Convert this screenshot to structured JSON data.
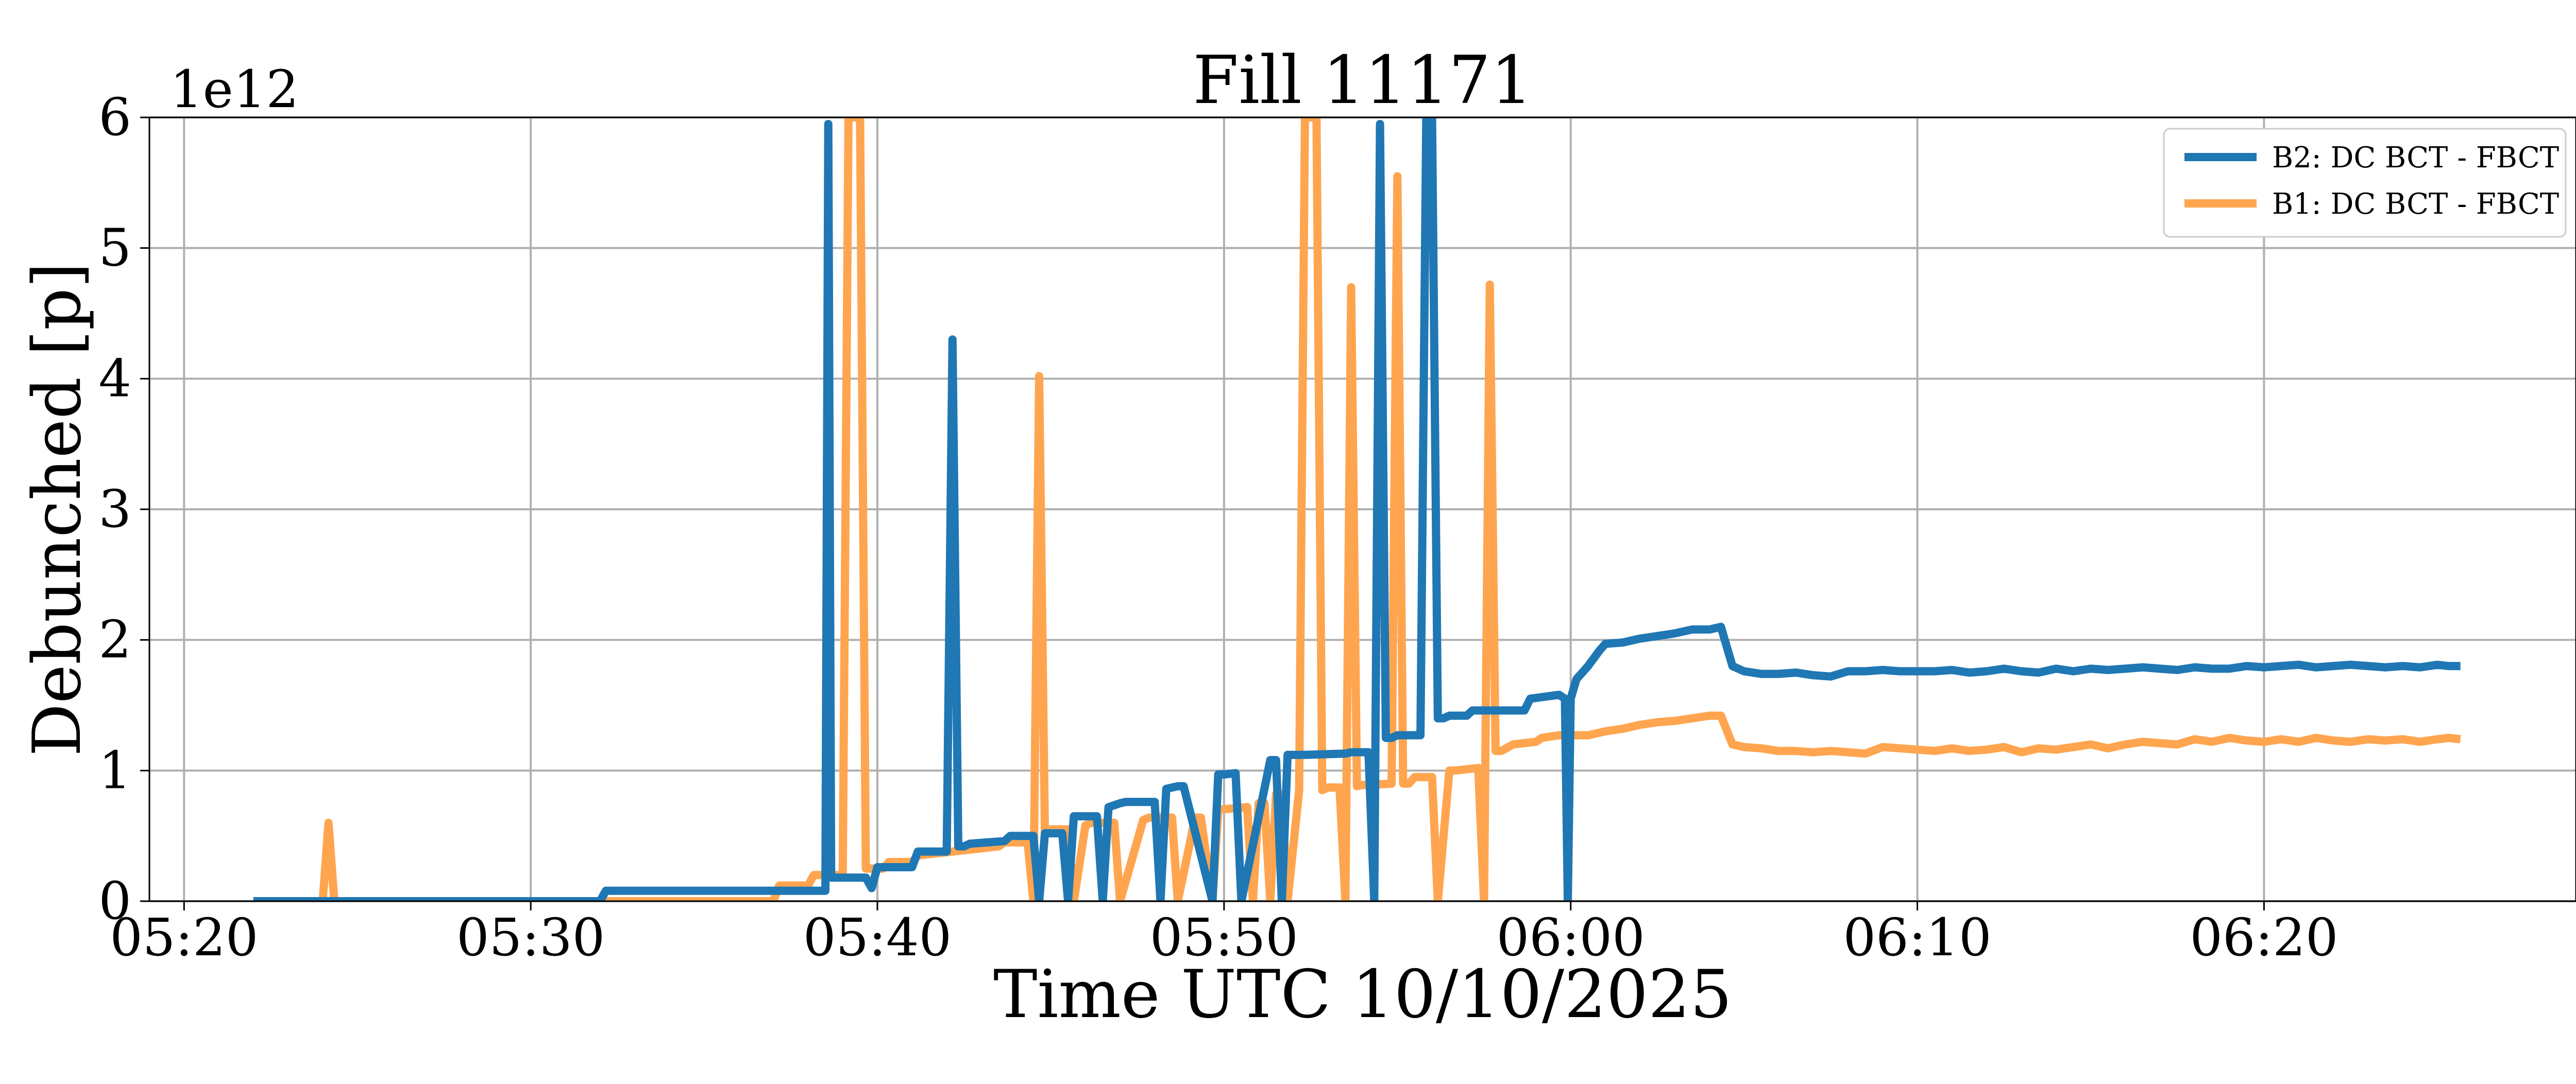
{
  "chart_data": {
    "type": "line",
    "title": "Fill 11171",
    "xlabel": "Time UTC 10/10/2025",
    "ylabel": "Debunched [p]",
    "y_offset_label": "1e12",
    "xlim": [
      "05:19",
      "06:29"
    ],
    "ylim": [
      0,
      6
    ],
    "x_ticks": [
      "05:20",
      "05:30",
      "05:40",
      "05:50",
      "06:00",
      "06:10",
      "06:20"
    ],
    "y_ticks": [
      0,
      1,
      2,
      3,
      4,
      5,
      6
    ],
    "grid": true,
    "legend_position": "top-right",
    "series": [
      {
        "name": "B2: DC BCT - FBCT",
        "color": "#1f77b4",
        "x": [
          "05:22:00",
          "05:32:00",
          "05:32:10",
          "05:38:30",
          "05:38:35",
          "05:38:40",
          "05:38:50",
          "05:39:40",
          "05:39:50",
          "05:40:00",
          "05:40:10",
          "05:41:00",
          "05:41:10",
          "05:42:00",
          "05:42:10",
          "05:42:20",
          "05:42:30",
          "05:42:40",
          "05:43:40",
          "05:43:50",
          "05:44:30",
          "05:44:40",
          "05:44:50",
          "05:45:20",
          "05:45:30",
          "05:45:40",
          "05:45:50",
          "05:46:20",
          "05:46:30",
          "05:46:40",
          "05:47:00",
          "05:47:10",
          "05:48:00",
          "05:48:10",
          "05:48:20",
          "05:48:40",
          "05:48:50",
          "05:49:40",
          "05:49:50",
          "05:50:00",
          "05:50:20",
          "05:50:30",
          "05:51:20",
          "05:51:30",
          "05:51:40",
          "05:51:50",
          "05:52:00",
          "05:52:10",
          "05:52:20",
          "05:53:30",
          "05:53:40",
          "05:54:00",
          "05:54:10",
          "05:54:20",
          "05:54:30",
          "05:54:40",
          "05:54:50",
          "05:55:00",
          "05:55:40",
          "05:55:50",
          "05:56:00",
          "05:56:10",
          "05:56:20",
          "05:56:30",
          "05:57:00",
          "05:57:10",
          "05:58:40",
          "05:58:50",
          "05:59:40",
          "05:59:50",
          "05:59:55",
          "06:00:00",
          "06:00:10",
          "06:00:30",
          "06:00:50",
          "06:01:00",
          "06:01:30",
          "06:02:00",
          "06:03:00",
          "06:03:30",
          "06:04:00",
          "06:04:20",
          "06:04:40",
          "06:05:00",
          "06:05:30",
          "06:06:00",
          "06:06:30",
          "06:07:00",
          "06:07:30",
          "06:08:00",
          "06:08:30",
          "06:09:00",
          "06:09:30",
          "06:10:00",
          "06:10:30",
          "06:11:00",
          "06:11:30",
          "06:12:00",
          "06:12:30",
          "06:13:00",
          "06:13:30",
          "06:14:00",
          "06:14:30",
          "06:15:00",
          "06:15:30",
          "06:16:00",
          "06:16:30",
          "06:17:00",
          "06:17:30",
          "06:18:00",
          "06:18:30",
          "06:19:00",
          "06:19:30",
          "06:20:00",
          "06:20:30",
          "06:21:00",
          "06:21:30",
          "06:22:00",
          "06:22:30",
          "06:23:00",
          "06:23:30",
          "06:24:00",
          "06:24:30",
          "06:25:00",
          "06:25:20",
          "06:25:40"
        ],
        "y": [
          0.0,
          0.0,
          0.08,
          0.08,
          5.95,
          0.18,
          0.18,
          0.18,
          0.1,
          0.26,
          0.26,
          0.26,
          0.38,
          0.38,
          4.3,
          0.42,
          0.42,
          0.44,
          0.46,
          0.5,
          0.5,
          0.0,
          0.52,
          0.52,
          0.0,
          0.65,
          0.65,
          0.65,
          0.0,
          0.72,
          0.75,
          0.76,
          0.76,
          0.0,
          0.86,
          0.88,
          0.88,
          0.0,
          0.97,
          0.97,
          0.98,
          0.0,
          1.08,
          1.08,
          0.0,
          1.12,
          1.12,
          1.12,
          1.12,
          1.13,
          1.14,
          1.14,
          1.14,
          0.0,
          5.95,
          1.25,
          1.25,
          1.27,
          1.27,
          6.0,
          6.0,
          1.4,
          1.4,
          1.42,
          1.42,
          1.46,
          1.46,
          1.55,
          1.58,
          1.55,
          0.0,
          1.55,
          1.7,
          1.8,
          1.92,
          1.97,
          1.98,
          2.01,
          2.05,
          2.08,
          2.08,
          2.1,
          1.8,
          1.76,
          1.74,
          1.74,
          1.75,
          1.73,
          1.72,
          1.76,
          1.76,
          1.77,
          1.76,
          1.76,
          1.76,
          1.77,
          1.75,
          1.76,
          1.78,
          1.76,
          1.75,
          1.78,
          1.76,
          1.78,
          1.77,
          1.78,
          1.79,
          1.78,
          1.77,
          1.79,
          1.78,
          1.78,
          1.8,
          1.79,
          1.8,
          1.81,
          1.79,
          1.8,
          1.81,
          1.8,
          1.79,
          1.8,
          1.79,
          1.81,
          1.8,
          1.8
        ]
      },
      {
        "name": "B1: DC BCT - FBCT",
        "color": "#ffa54f",
        "x": [
          "05:22:00",
          "05:24:00",
          "05:24:10",
          "05:24:20",
          "05:24:30",
          "05:32:00",
          "05:37:00",
          "05:37:10",
          "05:38:00",
          "05:38:10",
          "05:39:00",
          "05:39:10",
          "05:39:20",
          "05:39:30",
          "05:39:40",
          "05:39:50",
          "05:40:10",
          "05:40:20",
          "05:41:00",
          "05:41:10",
          "05:43:30",
          "05:43:40",
          "05:44:20",
          "05:44:30",
          "05:44:40",
          "05:44:50",
          "05:45:00",
          "05:45:30",
          "05:45:40",
          "05:46:00",
          "05:46:10",
          "05:46:50",
          "05:47:00",
          "05:47:40",
          "05:47:50",
          "05:48:30",
          "05:48:40",
          "05:49:10",
          "05:49:20",
          "05:49:40",
          "05:49:50",
          "05:50:40",
          "05:50:50",
          "05:51:00",
          "05:51:10",
          "05:51:20",
          "05:51:30",
          "05:51:40",
          "05:51:50",
          "05:52:10",
          "05:52:20",
          "05:52:30",
          "05:52:40",
          "05:52:50",
          "05:53:00",
          "05:53:20",
          "05:53:30",
          "05:53:40",
          "05:53:50",
          "05:54:00",
          "05:54:10",
          "05:54:50",
          "05:55:00",
          "05:55:10",
          "05:55:20",
          "05:55:30",
          "05:56:00",
          "05:56:10",
          "05:56:20",
          "05:56:30",
          "05:56:40",
          "05:57:20",
          "05:57:30",
          "05:57:40",
          "05:57:50",
          "05:58:00",
          "05:58:20",
          "05:59:00",
          "05:59:10",
          "05:59:40",
          "06:00:00",
          "06:00:30",
          "06:01:00",
          "06:01:30",
          "06:02:00",
          "06:02:30",
          "06:03:00",
          "06:03:30",
          "06:04:00",
          "06:04:20",
          "06:04:40",
          "06:05:00",
          "06:05:30",
          "06:06:00",
          "06:06:30",
          "06:07:00",
          "06:07:30",
          "06:08:00",
          "06:08:30",
          "06:09:00",
          "06:09:30",
          "06:10:00",
          "06:10:30",
          "06:11:00",
          "06:11:30",
          "06:12:00",
          "06:12:30",
          "06:13:00",
          "06:13:30",
          "06:14:00",
          "06:14:30",
          "06:15:00",
          "06:15:30",
          "06:16:00",
          "06:16:30",
          "06:17:00",
          "06:17:30",
          "06:18:00",
          "06:18:30",
          "06:19:00",
          "06:19:30",
          "06:20:00",
          "06:20:30",
          "06:21:00",
          "06:21:30",
          "06:22:00",
          "06:22:30",
          "06:23:00",
          "06:23:30",
          "06:24:00",
          "06:24:30",
          "06:25:00",
          "06:25:20",
          "06:25:40"
        ],
        "y": [
          0.0,
          0.0,
          0.6,
          0.0,
          0.0,
          0.0,
          0.0,
          0.12,
          0.12,
          0.2,
          0.2,
          6.0,
          6.0,
          6.0,
          0.25,
          0.25,
          0.25,
          0.3,
          0.3,
          0.35,
          0.42,
          0.45,
          0.45,
          0.0,
          4.02,
          0.5,
          0.55,
          0.55,
          0.0,
          0.58,
          0.6,
          0.6,
          0.0,
          0.62,
          0.64,
          0.64,
          0.0,
          0.64,
          0.64,
          0.0,
          0.7,
          0.72,
          0.0,
          0.75,
          0.75,
          0.0,
          0.82,
          0.82,
          0.0,
          0.85,
          6.0,
          6.0,
          6.0,
          0.85,
          0.87,
          0.87,
          0.0,
          4.7,
          0.88,
          0.89,
          0.89,
          0.9,
          5.55,
          0.9,
          0.9,
          0.95,
          0.95,
          0.0,
          0.5,
          1.0,
          1.0,
          1.02,
          0.0,
          4.72,
          1.15,
          1.15,
          1.2,
          1.22,
          1.25,
          1.27,
          1.27,
          1.27,
          1.3,
          1.32,
          1.35,
          1.37,
          1.38,
          1.4,
          1.42,
          1.42,
          1.2,
          1.18,
          1.17,
          1.15,
          1.15,
          1.14,
          1.15,
          1.14,
          1.13,
          1.18,
          1.17,
          1.16,
          1.15,
          1.17,
          1.15,
          1.16,
          1.18,
          1.14,
          1.17,
          1.16,
          1.18,
          1.2,
          1.17,
          1.2,
          1.22,
          1.21,
          1.2,
          1.24,
          1.22,
          1.25,
          1.23,
          1.22,
          1.24,
          1.22,
          1.25,
          1.23,
          1.22,
          1.24,
          1.23,
          1.24,
          1.22,
          1.24,
          1.25,
          1.24
        ]
      }
    ]
  }
}
